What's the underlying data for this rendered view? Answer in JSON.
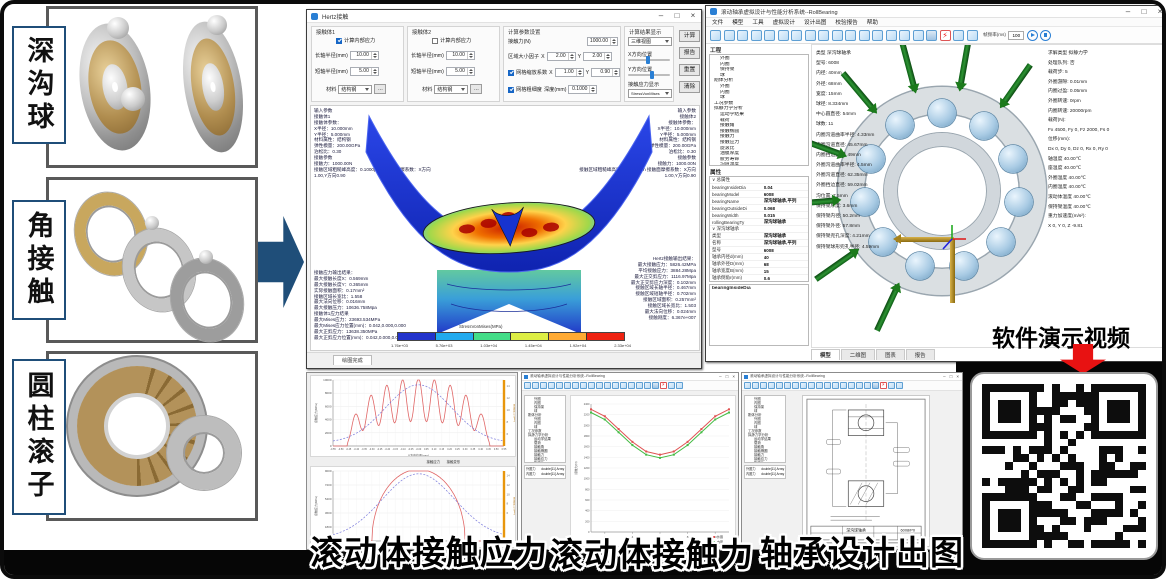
{
  "colors": {
    "accent_blue": "#1F4E79",
    "solve_red": "#E81212",
    "toolbar_blue": "#2A7FD4",
    "arrow_green": "#1C7A1C",
    "colorbar": [
      "#2233CC",
      "#22AAEE",
      "#44DD88",
      "#DDEE44",
      "#FFAA33",
      "#EE2211"
    ]
  },
  "window_controls": {
    "min": "–",
    "max": "□",
    "close": "×"
  },
  "left_panel": {
    "categories": [
      {
        "label": "深沟球"
      },
      {
        "label": "角接触"
      },
      {
        "label": "圆柱滚子"
      }
    ]
  },
  "hertz": {
    "title": "Hertz接触",
    "body1": {
      "title": "接触体1",
      "internal_stress_label": "计算内部应力",
      "major_label": "长轴半径(mm)",
      "major_value": "10.00",
      "minor_label": "短轴半径(mm)",
      "minor_value": "5.00",
      "material_label": "材料",
      "material_value": "结构钢",
      "more_label": "..."
    },
    "body2": {
      "title": "接触体2",
      "internal_stress_label": "计算内部应力",
      "major_label": "长轴半径(mm)",
      "major_value": "10.00",
      "minor_label": "短轴半径(mm)",
      "minor_value": "5.00",
      "material_label": "材料",
      "material_value": "结构钢",
      "more_label": "..."
    },
    "calc": {
      "title": "计算参数设置",
      "force_label": "接触力(N)",
      "force_value": "1000.00",
      "region_label": "区域大小因子",
      "x_label": "X",
      "y_label": "Y",
      "region_x": "2.00",
      "region_y": "2.00",
      "mesh_scale_label": "网格缩放系数",
      "mesh_x": "1.00",
      "mesh_y": "0.90",
      "mesh_fine_label": "网格粗细度",
      "depth_label": "深度(mm)",
      "depth_value": "0.1000"
    },
    "display": {
      "title": "计算结果显示",
      "view_mode": "三维视图",
      "x_pos_label": "X方向位置",
      "y_pos_label": "Y方向位置",
      "stress_label": "接触应力显示",
      "stress_value": "StressVonMises"
    },
    "buttons": [
      "计算",
      "报告",
      "重置",
      "清除"
    ],
    "left_info": "输入参数\n接触体1\n接触体参数：\nX半径：10.000mm\nY半径：5.000mm\n材料属性：结构钢\n弹性模量：200.00GPa\n泊松比：0.30\n接触参数\n接触力：1000.00N\n接触区域粗糙峰高度：0.1000μm 接触面摩擦系数：X方向1.00,Y方向0.90",
    "right_info": "输入参数\n接触体2\n接触体参数：\nX半径：10.000mm\nY半径：5.000mm\n材料属性：结构钢\n弹性模量：200.00GPa\n泊松比：0.30\n接触参数\n接触力：1000.00N\n接触区域粗糙峰高度：0.1000μm 接触面摩擦系数：X方向1.00,Y方向0.90",
    "left_results": "接触应力输出结果：\n最大接触长度X：0.569mm\n最大接触长度Y：0.365mm\n实际接触面积：0.17mm²\n接触区域长宽比：1.558\n最大法向位移：0.016mm\n最大接触压力：10636.758Mpa\n接触体1应力结果\n最大Mises应力：23693.534MPa\n最大Mises应力位置(mm)：0.042,0.000,0.000\n最大正剪应力：13638.350MPa\n最大正剪应力位置(mm)：0.042,0.000,0.000",
    "right_results": "Hertz接触输出结果：\n最大接触应力：5826.42MPa\n平均接触应力：3884.28Mpa\n最大正交剪应力：1116.97Mpa\n最大正交剪应力深度：0.102mm\n接触区域长轴半径：0.467mm\n接触区域短轴半径：0.702mm\n接触区域面积：0.257mm²\n接触区域长宽比：1.503\n最大法向位移：0.024mm\n接触刚度：6.367e+007",
    "colorbar": {
      "title": "StressVonMises(MPa)",
      "ticks": [
        "1.76e+03",
        "5.76e+03",
        "1.03e+04",
        "1.45e+04",
        "1.92e+04",
        "2.33e+04"
      ]
    },
    "status": "绘图完成"
  },
  "rollbearing": {
    "title": "滚动轴承虚拟设计与性能分析系统--RollBearing",
    "menus": [
      "文件",
      "模型",
      "工具",
      "虚拟设计",
      "设计出图",
      "校验报告",
      "帮助"
    ],
    "frame_rate_label": "帧频率(ms)",
    "frame_rate_value": "100",
    "toolbar_icons": [
      "new-icon",
      "open-icon",
      "save-icon",
      "export-icon",
      "pan-icon",
      "rotate-icon",
      "fit-icon",
      "zoom-icon",
      "globe-icon",
      "view-iso-icon",
      "view-front-icon",
      "view-back-icon",
      "view-left-icon",
      "view-right-icon",
      "view-top-icon",
      "view-bottom-icon",
      "print-icon",
      "solve-bolt-icon",
      "gear-icon",
      "material-icon"
    ],
    "project_title": "工程",
    "tree": [
      {
        "label": "外圈",
        "depth": 1
      },
      {
        "label": "内圈",
        "depth": 1
      },
      {
        "label": "保持架",
        "depth": 1
      },
      {
        "label": "球",
        "depth": 1
      },
      {
        "label": "刚体分析",
        "depth": 0
      },
      {
        "label": "外圈",
        "depth": 1
      },
      {
        "label": "内圈",
        "depth": 1
      },
      {
        "label": "球",
        "depth": 1
      },
      {
        "label": "工况参数",
        "depth": 0
      },
      {
        "label": "拟静力学分析",
        "depth": 0
      },
      {
        "label": "运动学结果",
        "depth": 1
      },
      {
        "label": "载荷",
        "depth": 1
      },
      {
        "label": "接触角",
        "depth": 1
      },
      {
        "label": "接触椭圆",
        "depth": 1
      },
      {
        "label": "接触力",
        "depth": 1
      },
      {
        "label": "接触应力",
        "depth": 1
      },
      {
        "label": "旋滚比",
        "depth": 1
      },
      {
        "label": "油膜厚度",
        "depth": 1
      },
      {
        "label": "疲劳寿命",
        "depth": 1
      },
      {
        "label": "沟道温度",
        "depth": 1
      }
    ],
    "properties_title": "属性",
    "properties": [
      [
        "∨ 总属性",
        ""
      ],
      [
        "bearingInsideDia",
        "0.04"
      ],
      [
        "bearingModel",
        "6008"
      ],
      [
        "bearingName",
        "深沟球轴承,平列"
      ],
      [
        "bearingOutsideDi",
        "0.068"
      ],
      [
        "bearingWidth",
        "0.015"
      ],
      [
        "rollingBearingTy",
        "深沟球轴承"
      ],
      [
        "∨ 深沟球轴承",
        ""
      ],
      [
        "类型",
        "深沟球轴承"
      ],
      [
        "名称",
        "深沟球轴承,平列"
      ],
      [
        "型号",
        "6008"
      ],
      [
        "轴承内径d(mm)",
        "40"
      ],
      [
        "轴承外径D(mm)",
        "68"
      ],
      [
        "轴承宽度B(mm)",
        "15"
      ],
      [
        "轴承倒角r(mm)",
        "0.6"
      ]
    ],
    "properties_footer": "bearingInsideDia",
    "view_left_info": [
      "类型 深沟球轴承",
      "型号: 6008",
      "内径: 40mm",
      "外径: 68mm",
      "宽度: 15mm",
      "球径: 8.334mm",
      "中心圆直径: 54mm",
      "球数: 11",
      "内圈沟道曲率半径: 4.33mm",
      "内圈沟道直径: 45.67mm",
      "内圈挡边直径: 49mm",
      "外圈沟道曲率半径: 4.5mm",
      "外圈沟道直径: 62.35mm",
      "外圈挡边直径: 59.02mm",
      "沟位置: 7.5mm",
      "保持架厚度: 3.6mm",
      "保持架内径: 50.2mm",
      "保持架外径: 57.8mm",
      "保持架兜孔深度: 4.21mm",
      "保持架球形兜孔半径: 4.59mm"
    ],
    "view_right_info": [
      "求解类型 拟静力学",
      "处理队列: 否",
      "载荷步: 5",
      "外圈游隙: 0.01mm",
      "内圈过盈: 0.05mm",
      "外圈转速: 0rpm",
      "内圈转速: 20000rpm",
      "载荷(N):",
      "Fx 4500, Fy 0, Fz 2000, Fs 0",
      "位移(mm):",
      "Dx 0, Dy 0, Dz 0, Rx 0, Ry 0",
      "轴温度 40.00℃",
      "座温度 40.00℃",
      "外圈温度 40.00℃",
      "内圈温度 40.00℃",
      "滚动体温度 40.00℃",
      "保持架温度 40.00℃",
      "重力加速度(m/s²):",
      "X 0, Y 0, Z -9.81"
    ],
    "tabs": [
      "模型",
      "二维图",
      "图表",
      "报告"
    ]
  },
  "bottom": {
    "stress_caption": "滚动体接触应力",
    "force_caption": "滚动体接触力",
    "drawing_caption": "轴承设计出图",
    "force_props": [
      [
        "外圈力",
        "double[11] Array"
      ],
      [
        "内圈力",
        "double[11] Array"
      ]
    ],
    "drawing_labels": {
      "part": "深沟球轴承",
      "model": "6008/P0"
    }
  },
  "video": {
    "label": "软件演示视频"
  },
  "chart_data": [
    {
      "type": "line",
      "panel": "rough-contact-stress",
      "xlabel": "X方向位置(mm)",
      "ylabel": "接触应力(MPa)",
      "y2label": "接触变形(μm)",
      "xlim": [
        -0.55,
        0.55
      ],
      "ylim": [
        0,
        10000
      ],
      "y2lim": [
        4,
        15
      ],
      "x_tick_step": 0.05,
      "legend": [
        "接触应力",
        "接触变形"
      ],
      "series": [
        {
          "name": "接触应力",
          "color": "#e06666",
          "style": "ripple-dome",
          "peak": 10300,
          "half_width": 0.46,
          "ripples": 9
        },
        {
          "name": "接触变形",
          "color": "#7b7bdc",
          "style": "dashed-bell",
          "peak": 14.2,
          "sigma": 0.3,
          "base": 4.5
        }
      ]
    },
    {
      "type": "line",
      "panel": "smooth-contact-stress",
      "xlabel": "X方向位置(mm)",
      "ylabel": "接触应力(MPa)",
      "y2label": "接触变形(μm)",
      "xlim": [
        -0.55,
        0.55
      ],
      "ylim": [
        0,
        9000
      ],
      "y2lim": [
        0,
        15
      ],
      "legend": [
        "接触应力",
        "接触变形"
      ],
      "series": [
        {
          "name": "接触应力",
          "color": "#e06666",
          "style": "dome",
          "peak": 9200,
          "half_width": 0.3
        },
        {
          "name": "接触变形",
          "color": "#7b7bdc",
          "style": "dashed-bell",
          "peak": 14.4,
          "sigma": 0.33,
          "base": 0.5
        }
      ]
    },
    {
      "type": "line",
      "panel": "ball-contact-force",
      "xlabel": "球编号",
      "ylabel": "接触力(N)",
      "xlim": [
        1,
        11
      ],
      "ylim": [
        0,
        2400
      ],
      "x": [
        1,
        2,
        3,
        4,
        5,
        6,
        7,
        8,
        9,
        10,
        11
      ],
      "legend": [
        "外圈",
        "内圈"
      ],
      "series": [
        {
          "name": "外圈",
          "color": "#e05252",
          "values": [
            2300,
            2170,
            1930,
            1690,
            1510,
            1450,
            1510,
            1690,
            1930,
            2170,
            2300
          ]
        },
        {
          "name": "内圈",
          "color": "#44bb44",
          "values": [
            2240,
            2110,
            1870,
            1630,
            1450,
            1390,
            1450,
            1630,
            1870,
            2110,
            2240
          ]
        }
      ]
    }
  ]
}
